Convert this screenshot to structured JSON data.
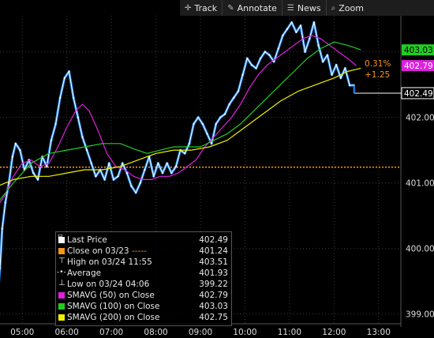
{
  "toolbar": {
    "items": [
      {
        "label": "Track",
        "icon": "crosshair-icon"
      },
      {
        "label": "Annotate",
        "icon": "pencil-icon"
      },
      {
        "label": "News",
        "icon": "news-icon"
      },
      {
        "label": "Zoom",
        "icon": "magnifier-icon"
      }
    ]
  },
  "legend": {
    "rows": [
      {
        "label": "Last Price",
        "value": "402.49",
        "marker": "square",
        "color": "#ffffff"
      },
      {
        "label": "Close on 03/23",
        "value": "401.24",
        "marker": "square",
        "color": "#f7941d",
        "suffix": "-----"
      },
      {
        "label": "High on 03/24 11:55",
        "value": "403.51",
        "marker": "high-glyph",
        "color": "#ffffff"
      },
      {
        "label": "Average",
        "value": "401.93",
        "marker": "average-glyph",
        "color": "#ffffff"
      },
      {
        "label": "Low on 03/24 04:06",
        "value": "399.22",
        "marker": "low-glyph",
        "color": "#ffffff"
      },
      {
        "label": "SMAVG (50) on Close",
        "value": "402.79",
        "marker": "square",
        "color": "#e020e0"
      },
      {
        "label": "SMAVG (100) on Close",
        "value": "403.03",
        "marker": "square",
        "color": "#22cc22"
      },
      {
        "label": "SMAVG (200) on Close",
        "value": "402.75",
        "marker": "square",
        "color": "#f0f000"
      }
    ]
  },
  "chart_data": {
    "type": "line",
    "x_ticks": [
      "05:00",
      "06:00",
      "07:00",
      "08:00",
      "09:00",
      "10:00",
      "11:00",
      "12:00",
      "13:00"
    ],
    "y_ticks": [
      399.0,
      400.0,
      401.0,
      402.0,
      403.0
    ],
    "ylim": [
      398.85,
      403.55
    ],
    "xlim_hours": [
      4.5,
      13.5
    ],
    "reference_close": 401.24,
    "change_pct": "0.31%",
    "change_abs": "+1.25",
    "last_price_label": "402.49",
    "sma50_label": "402.79",
    "sma100_label": "403.03",
    "series": [
      {
        "name": "Last Price",
        "color": "#ffffff",
        "accent": "#1e8fff",
        "x": [
          4.45,
          4.5,
          4.55,
          4.62,
          4.7,
          4.78,
          4.85,
          4.95,
          5.05,
          5.15,
          5.25,
          5.35,
          5.45,
          5.55,
          5.65,
          5.75,
          5.85,
          5.95,
          6.05,
          6.15,
          6.25,
          6.35,
          6.45,
          6.55,
          6.65,
          6.75,
          6.85,
          6.95,
          7.05,
          7.15,
          7.25,
          7.35,
          7.45,
          7.55,
          7.65,
          7.75,
          7.85,
          7.95,
          8.05,
          8.15,
          8.25,
          8.35,
          8.45,
          8.55,
          8.65,
          8.75,
          8.85,
          8.95,
          9.05,
          9.15,
          9.25,
          9.35,
          9.45,
          9.55,
          9.65,
          9.75,
          9.85,
          9.95,
          10.05,
          10.15,
          10.25,
          10.35,
          10.45,
          10.55,
          10.65,
          10.75,
          10.85,
          10.95,
          11.05,
          11.15,
          11.25,
          11.35,
          11.45,
          11.55,
          11.65,
          11.75,
          11.85,
          11.95,
          12.05,
          12.15,
          12.25,
          12.35,
          12.45
        ],
        "y": [
          399.3,
          399.7,
          400.3,
          400.7,
          401.0,
          401.4,
          401.6,
          401.5,
          401.2,
          401.35,
          401.15,
          401.05,
          401.4,
          401.25,
          401.65,
          401.9,
          402.3,
          402.6,
          402.7,
          402.3,
          402.0,
          401.7,
          401.5,
          401.3,
          401.1,
          401.2,
          401.05,
          401.3,
          401.05,
          401.1,
          401.3,
          401.15,
          400.95,
          400.85,
          401.0,
          401.2,
          401.4,
          401.1,
          401.3,
          401.15,
          401.3,
          401.15,
          401.25,
          401.5,
          401.45,
          401.6,
          401.9,
          402.0,
          401.9,
          401.75,
          401.6,
          401.9,
          402.0,
          402.05,
          402.2,
          402.3,
          402.4,
          402.65,
          402.9,
          402.8,
          402.75,
          402.9,
          403.0,
          402.95,
          402.85,
          403.05,
          403.25,
          403.35,
          403.45,
          403.3,
          403.4,
          403.0,
          403.2,
          403.45,
          403.1,
          402.85,
          402.95,
          402.65,
          402.8,
          402.6,
          402.75,
          402.49,
          402.49
        ]
      },
      {
        "name": "SMAVG (50) on Close",
        "color": "#e020e0",
        "x": [
          4.45,
          4.6,
          4.8,
          5.0,
          5.2,
          5.4,
          5.6,
          5.8,
          6.0,
          6.2,
          6.35,
          6.5,
          6.7,
          6.9,
          7.1,
          7.3,
          7.5,
          7.7,
          7.9,
          8.1,
          8.3,
          8.5,
          8.7,
          8.9,
          9.1,
          9.3,
          9.5,
          9.7,
          9.9,
          10.1,
          10.3,
          10.5,
          10.7,
          10.9,
          11.1,
          11.3,
          11.5,
          11.7,
          11.9,
          12.1,
          12.3,
          12.5
        ],
        "y": [
          400.65,
          400.8,
          401.1,
          401.3,
          401.35,
          401.25,
          401.3,
          401.55,
          401.85,
          402.1,
          402.2,
          402.1,
          401.8,
          401.45,
          401.25,
          401.2,
          401.1,
          401.05,
          401.05,
          401.1,
          401.1,
          401.15,
          401.25,
          401.35,
          401.55,
          401.7,
          401.85,
          402.0,
          402.2,
          402.45,
          402.65,
          402.8,
          402.9,
          403.0,
          403.1,
          403.2,
          403.25,
          403.2,
          403.1,
          403.0,
          402.9,
          402.79
        ]
      },
      {
        "name": "SMAVG (100) on Close",
        "color": "#22cc22",
        "x": [
          4.45,
          4.8,
          5.2,
          5.6,
          6.0,
          6.4,
          6.8,
          7.2,
          7.5,
          7.8,
          8.1,
          8.4,
          8.7,
          9.0,
          9.3,
          9.6,
          9.9,
          10.2,
          10.5,
          10.8,
          11.1,
          11.4,
          11.7,
          12.0,
          12.3,
          12.6
        ],
        "y": [
          400.7,
          401.0,
          401.3,
          401.45,
          401.5,
          401.55,
          401.6,
          401.6,
          401.52,
          401.45,
          401.5,
          401.55,
          401.55,
          401.55,
          401.65,
          401.75,
          401.9,
          402.1,
          402.3,
          402.5,
          402.7,
          402.9,
          403.05,
          403.15,
          403.1,
          403.03
        ]
      },
      {
        "name": "SMAVG (200) on Close",
        "color": "#f0f000",
        "x": [
          4.45,
          4.8,
          5.2,
          5.6,
          6.0,
          6.4,
          6.8,
          7.2,
          7.6,
          8.0,
          8.4,
          8.8,
          9.2,
          9.6,
          10.0,
          10.4,
          10.8,
          11.2,
          11.6,
          12.0,
          12.3,
          12.6
        ],
        "y": [
          400.95,
          401.05,
          401.1,
          401.1,
          401.15,
          401.2,
          401.2,
          401.25,
          401.35,
          401.45,
          401.5,
          401.5,
          401.55,
          401.65,
          401.85,
          402.05,
          402.25,
          402.4,
          402.5,
          402.6,
          402.7,
          402.75
        ]
      }
    ]
  }
}
